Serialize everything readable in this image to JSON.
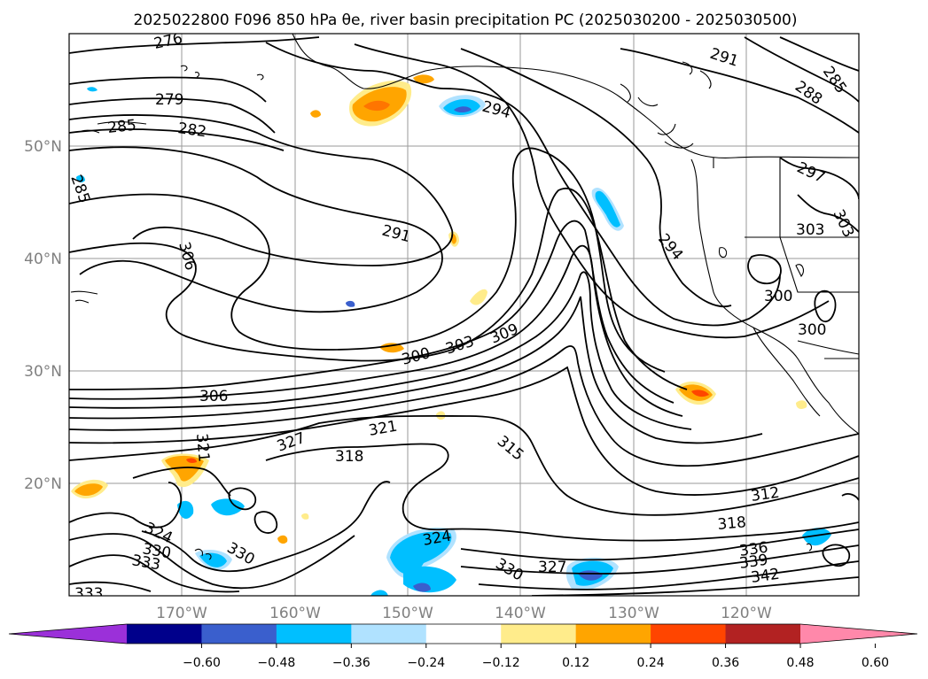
{
  "title": "2025022800 F096 850 hPa θe, river basin precipitation PC (2025030200 - 2025030500)",
  "lat_labels": [
    "50°N",
    "40°N",
    "30°N",
    "20°N"
  ],
  "lon_labels": [
    "170°W",
    "160°W",
    "150°W",
    "140°W",
    "130°W",
    "120°W"
  ],
  "contour_labels": [
    {
      "text": "276"
    },
    {
      "text": "279"
    },
    {
      "text": "282"
    },
    {
      "text": "285"
    },
    {
      "text": "285"
    },
    {
      "text": "291"
    },
    {
      "text": "294"
    },
    {
      "text": "291"
    },
    {
      "text": "288"
    },
    {
      "text": "285"
    },
    {
      "text": "297"
    },
    {
      "text": "303"
    },
    {
      "text": "303"
    },
    {
      "text": "294"
    },
    {
      "text": "300"
    },
    {
      "text": "300"
    },
    {
      "text": "306"
    },
    {
      "text": "306"
    },
    {
      "text": "300"
    },
    {
      "text": "303"
    },
    {
      "text": "309"
    },
    {
      "text": "321"
    },
    {
      "text": "327"
    },
    {
      "text": "321"
    },
    {
      "text": "318"
    },
    {
      "text": "315"
    },
    {
      "text": "312"
    },
    {
      "text": "318"
    },
    {
      "text": "324"
    },
    {
      "text": "330"
    },
    {
      "text": "333"
    },
    {
      "text": "330"
    },
    {
      "text": "324"
    },
    {
      "text": "330"
    },
    {
      "text": "327"
    },
    {
      "text": "336"
    },
    {
      "text": "339"
    },
    {
      "text": "342"
    },
    {
      "text": "333"
    }
  ],
  "colorbar": {
    "ticks": [
      "−0.60",
      "−0.48",
      "−0.36",
      "−0.24",
      "−0.12",
      "0.12",
      "0.24",
      "0.36",
      "0.48",
      "0.60"
    ],
    "colors": [
      "#9b30d9",
      "#00008b",
      "#3a5fcd",
      "#00bfff",
      "#b0e2ff",
      "#ffffff",
      "#ffec8b",
      "#ffa500",
      "#ff4500",
      "#b22222",
      "#ff88aa"
    ]
  }
}
